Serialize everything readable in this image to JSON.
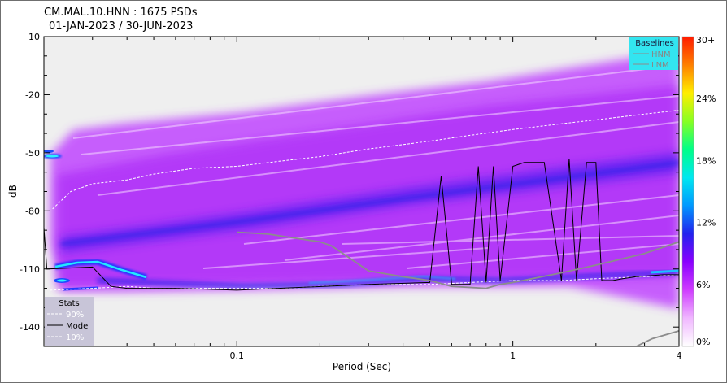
{
  "chart_data": {
    "type": "heatmap",
    "title": "CM.MAL.10.HNN : 1675 PSDs",
    "subtitle": "01-JAN-2023 / 30-JUN-2023",
    "xlabel": "Period (Sec)",
    "ylabel": "dB",
    "x_scale": "log",
    "xlim": [
      0.02,
      4
    ],
    "ylim": [
      -150,
      10
    ],
    "x_ticks": [
      {
        "value": 0.1,
        "label": "0.1"
      },
      {
        "value": 1,
        "label": "1"
      },
      {
        "value": 4,
        "label": "4"
      }
    ],
    "x_minor_ticks": [
      0.02,
      0.03,
      0.04,
      0.05,
      0.06,
      0.07,
      0.08,
      0.09,
      0.2,
      0.3,
      0.4,
      0.5,
      0.6,
      0.7,
      0.8,
      0.9,
      2,
      3
    ],
    "y_ticks": [
      {
        "value": 10,
        "label": "10"
      },
      {
        "value": -20,
        "label": "-20"
      },
      {
        "value": -50,
        "label": "-50"
      },
      {
        "value": -80,
        "label": "-80"
      },
      {
        "value": -110,
        "label": "-110"
      },
      {
        "value": -140,
        "label": "-140"
      }
    ],
    "y_minor_ticks": [
      0,
      -10,
      -30,
      -40,
      -60,
      -70,
      -90,
      -100,
      -120,
      -130
    ],
    "baselines_legend": {
      "title": "Baselines",
      "entries": [
        "HNM",
        "LNM"
      ],
      "placement": "top-right",
      "background": "#33e5f0"
    },
    "stats_legend": {
      "title": "Stats",
      "entries": [
        "90%",
        "Mode",
        "10%"
      ],
      "placement": "bottom-left",
      "background": "#c8c5d8"
    },
    "colorbar": {
      "labels": [
        "30+",
        "24%",
        "18%",
        "12%",
        "6%",
        "0%"
      ],
      "values": [
        30,
        24,
        18,
        12,
        6,
        0
      ],
      "colors": [
        "#ff1a00",
        "#ff7f00",
        "#ffee00",
        "#88ff22",
        "#00ff88",
        "#00e8f0",
        "#0099ff",
        "#2222ee",
        "#8a00ff",
        "#cf3cff",
        "#f0b8ff",
        "#ffffff"
      ]
    },
    "series": [
      {
        "name": "90%",
        "style": "dashed",
        "color": "#ffffff",
        "x": [
          0.0215,
          0.025,
          0.03,
          0.04,
          0.05,
          0.07,
          0.1,
          0.15,
          0.2,
          0.3,
          0.5,
          0.7,
          1,
          1.5,
          2,
          3,
          4
        ],
        "y": [
          -79,
          -70,
          -66,
          -64,
          -61,
          -58,
          -57,
          -54,
          -52,
          -48,
          -44,
          -41,
          -38,
          -35,
          -33,
          -30,
          -28
        ]
      },
      {
        "name": "10%",
        "style": "dashed",
        "color": "#ffffff",
        "x": [
          0.021,
          0.03,
          0.04,
          0.05,
          0.07,
          0.1,
          0.15,
          0.2,
          0.3,
          0.5,
          0.7,
          1,
          1.5,
          2,
          3,
          4
        ],
        "y": [
          -121,
          -120,
          -119,
          -120,
          -120,
          -120,
          -120,
          -119,
          -118,
          -118,
          -117,
          -116,
          -116,
          -115,
          -114,
          -113
        ]
      },
      {
        "name": "Mode",
        "style": "solid",
        "color": "#000000",
        "x": [
          0.0175,
          0.0185,
          0.0192,
          0.0205,
          0.03,
          0.035,
          0.04,
          0.06,
          0.1,
          0.3,
          0.5,
          0.55,
          0.6,
          0.7,
          0.75,
          0.8,
          0.85,
          0.9,
          1,
          1.1,
          1.3,
          1.5,
          1.6,
          1.7,
          1.85,
          2.0,
          2.1,
          2.3,
          2.5,
          2.8,
          3.5,
          4
        ],
        "y": [
          -51,
          -52,
          -53,
          -110,
          -109,
          -119,
          -120,
          -120,
          -121,
          -118,
          -117,
          -62,
          -118,
          -118,
          -57,
          -117,
          -57,
          -116,
          -57,
          -55,
          -55,
          -116,
          -53,
          -116,
          -55,
          -55,
          -116,
          -116,
          -115,
          -114,
          -113,
          -113
        ]
      },
      {
        "name": "HNM",
        "style": "solid",
        "color": "#8c8c8c",
        "x": [
          0.1,
          0.13,
          0.2,
          0.22,
          0.3,
          0.4,
          0.5,
          0.6,
          0.8,
          0.9,
          1,
          1.5,
          2,
          3,
          4
        ],
        "y": [
          -91,
          -92,
          -96,
          -98,
          -111,
          -114,
          -116,
          -119,
          -120,
          -118,
          -117,
          -112,
          -108,
          -102,
          -96
        ]
      },
      {
        "name": "LNM",
        "style": "solid",
        "color": "#8c8c8c",
        "x": [
          2.8,
          3.2,
          4
        ],
        "y": [
          -150,
          -146,
          -142
        ]
      }
    ]
  }
}
